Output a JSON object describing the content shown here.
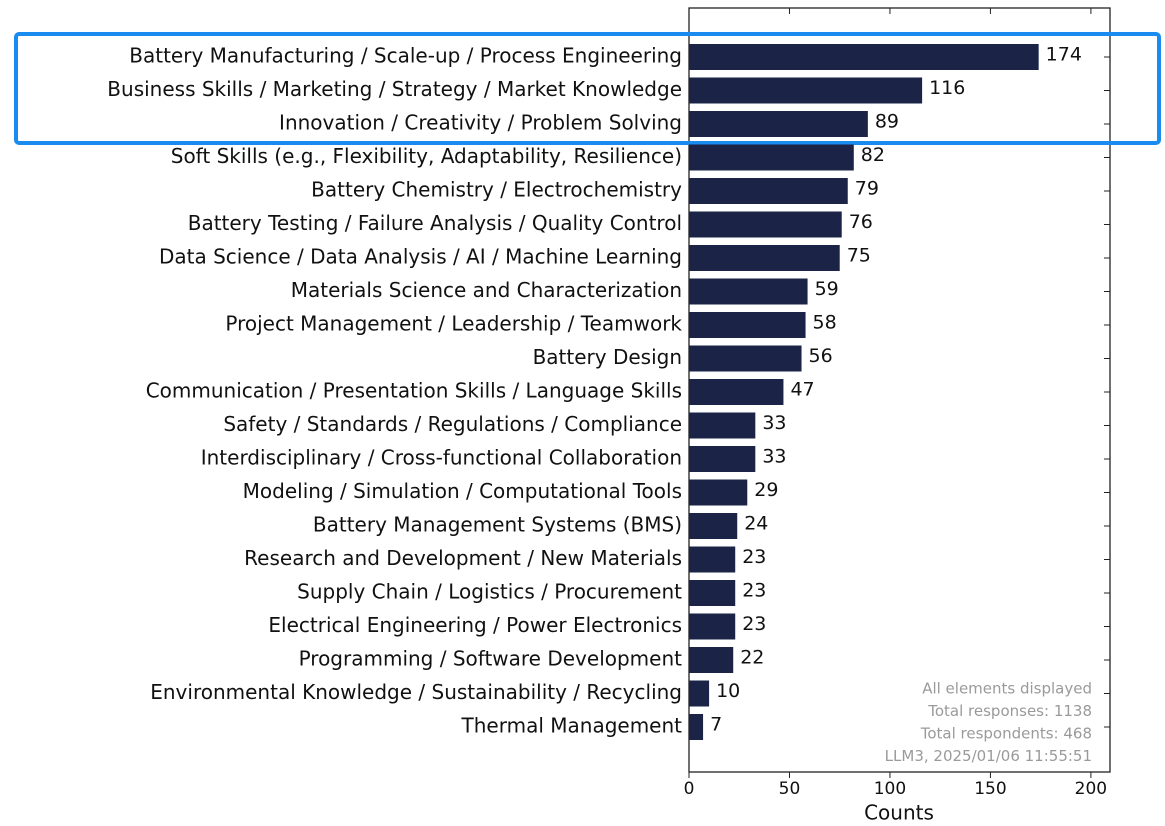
{
  "chart_data": {
    "type": "bar",
    "orientation": "horizontal",
    "categories": [
      "Battery Manufacturing / Scale-up / Process Engineering",
      "Business Skills / Marketing / Strategy / Market Knowledge",
      "Innovation / Creativity / Problem Solving",
      "Soft Skills (e.g., Flexibility, Adaptability, Resilience)",
      "Battery Chemistry / Electrochemistry",
      "Battery Testing / Failure Analysis / Quality Control",
      "Data Science / Data Analysis / AI / Machine Learning",
      "Materials Science and Characterization",
      "Project Management / Leadership / Teamwork",
      "Battery Design",
      "Communication / Presentation Skills / Language Skills",
      "Safety / Standards / Regulations / Compliance",
      "Interdisciplinary / Cross-functional Collaboration",
      "Modeling / Simulation / Computational Tools",
      "Battery Management Systems (BMS)",
      "Research and Development / New Materials",
      "Supply Chain / Logistics / Procurement",
      "Electrical Engineering / Power Electronics",
      "Programming / Software Development",
      "Environmental Knowledge / Sustainability / Recycling",
      "Thermal Management"
    ],
    "values": [
      174,
      116,
      89,
      82,
      79,
      76,
      75,
      59,
      58,
      56,
      47,
      33,
      33,
      29,
      24,
      23,
      23,
      23,
      22,
      10,
      7
    ],
    "color": "#1b2447",
    "xlabel": "Counts",
    "xlim": [
      0,
      209.5
    ],
    "xticks": [
      0,
      50,
      100,
      150,
      200
    ],
    "annotation": [
      "All elements displayed",
      "Total responses: 1138",
      "Total respondents: 468",
      "LLM3, 2025/01/06 11:55:51"
    ]
  }
}
